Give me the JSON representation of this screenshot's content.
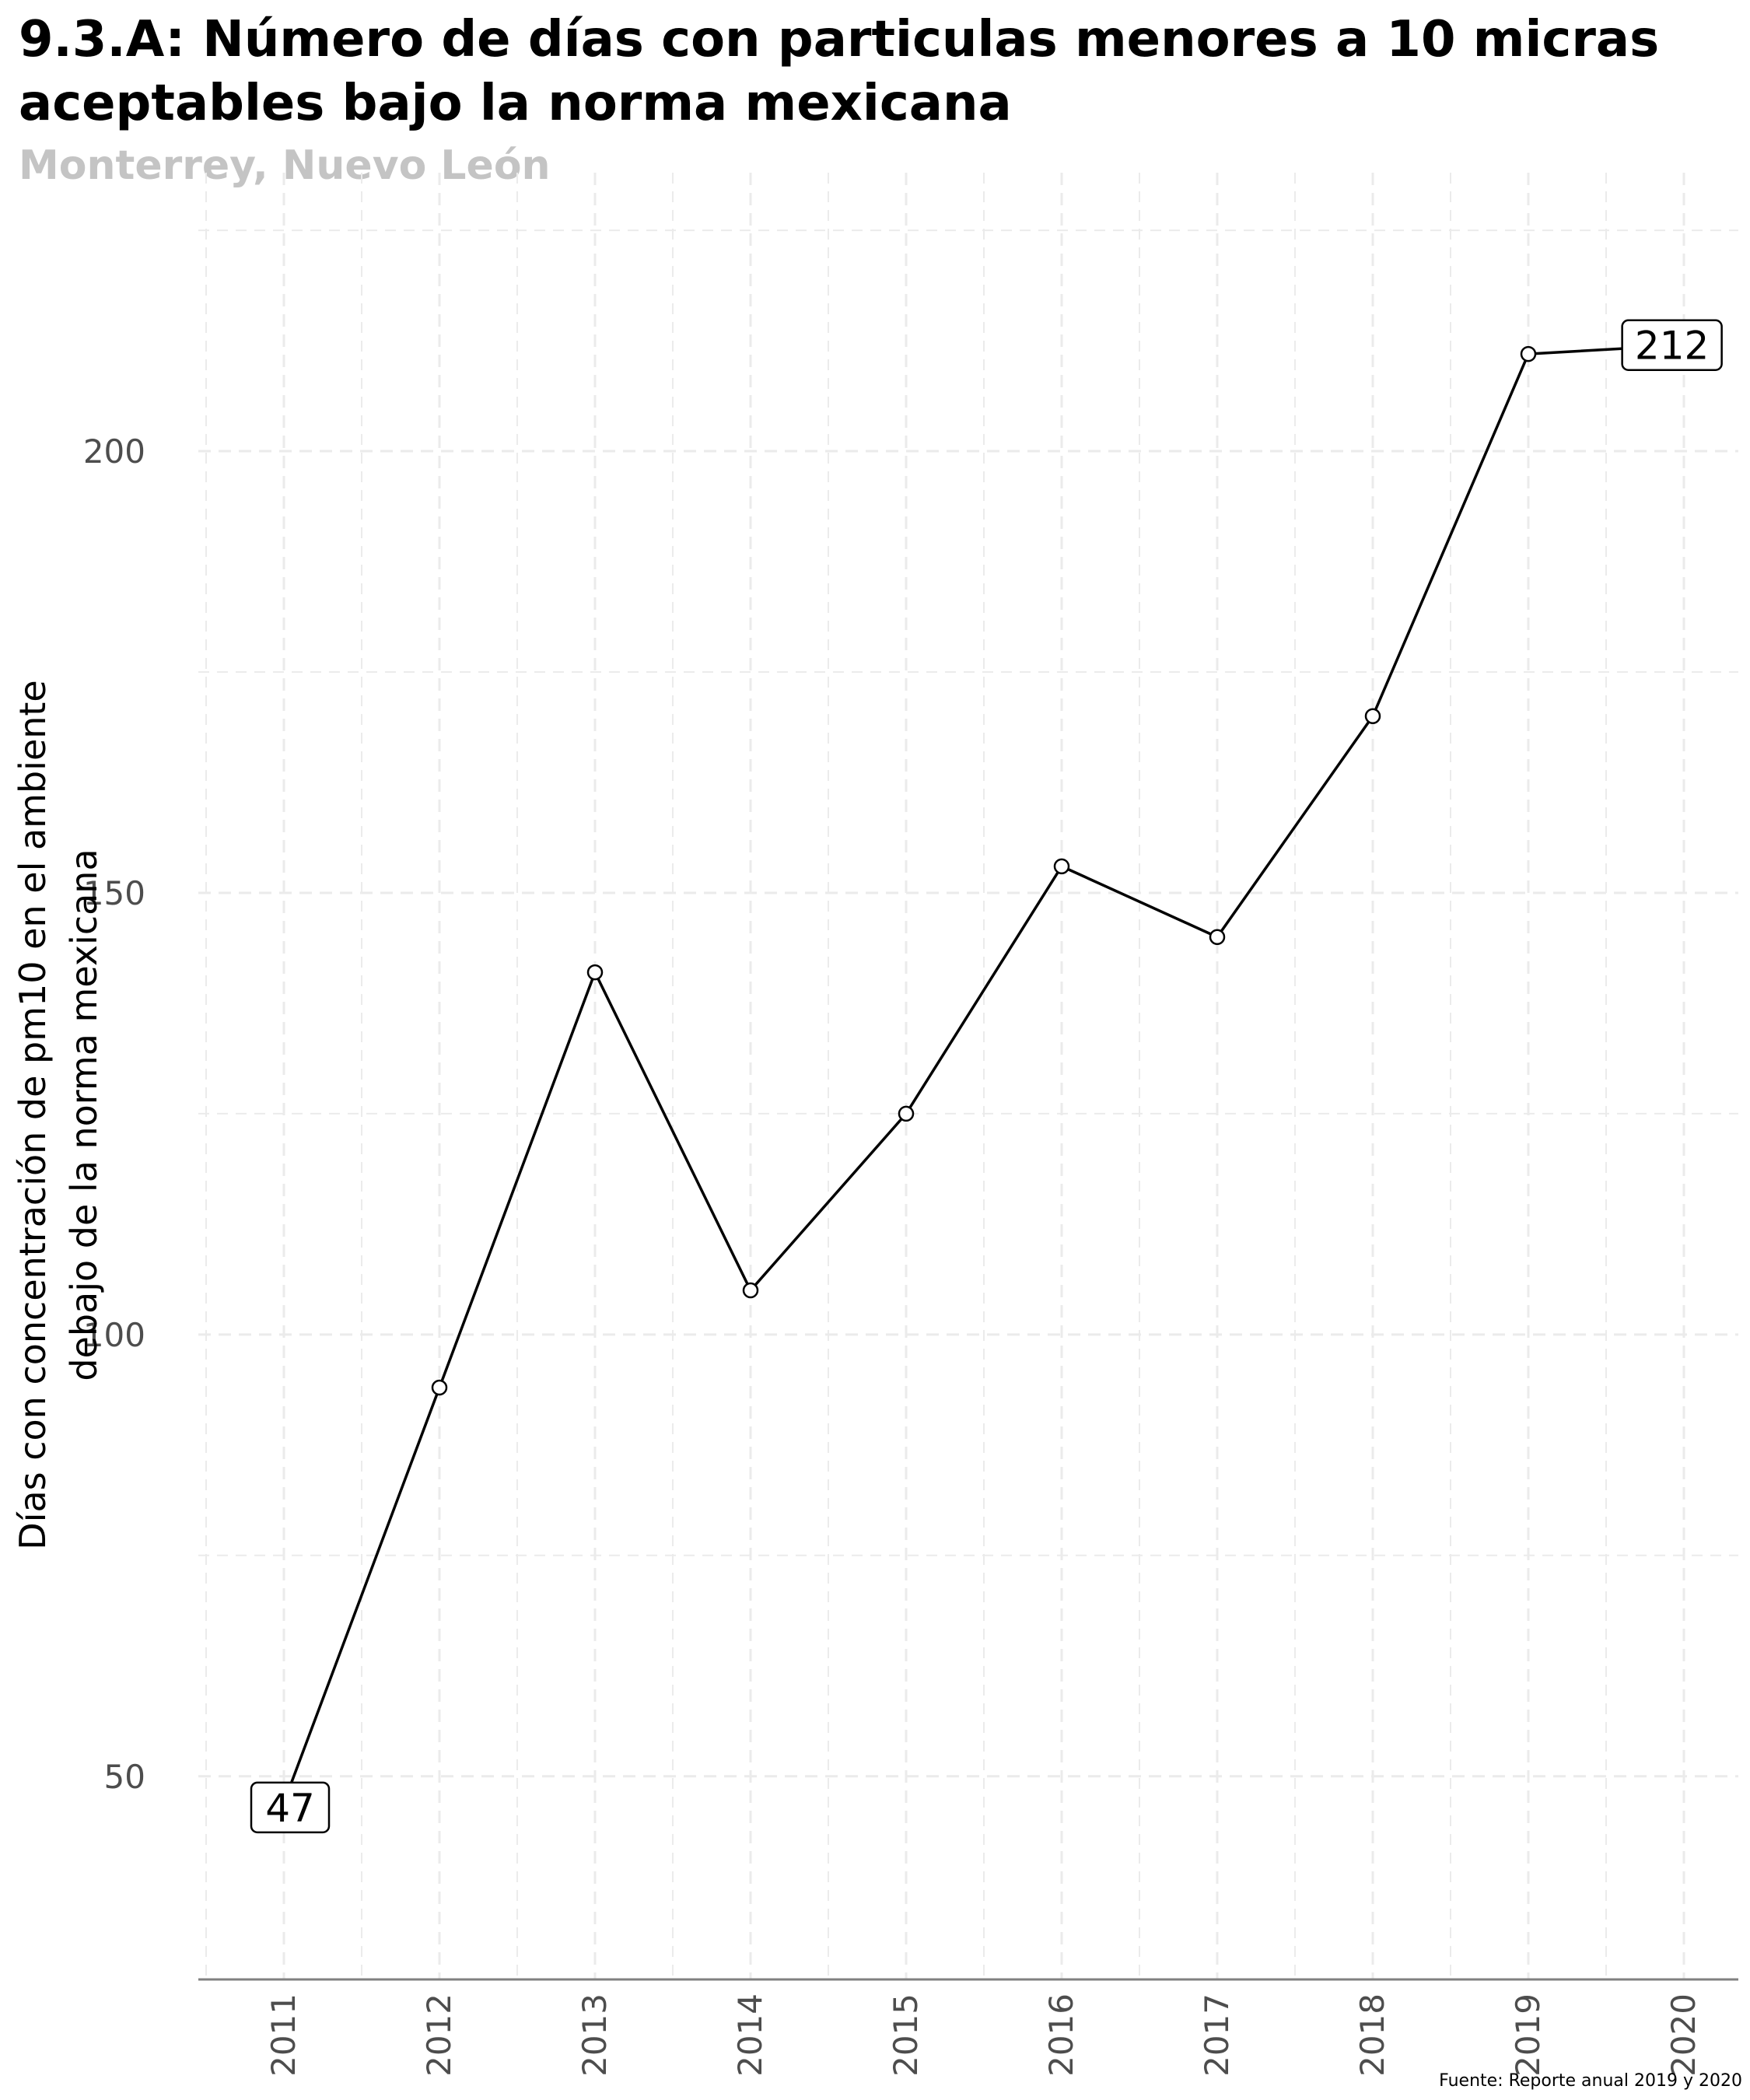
{
  "title": "9.3.A: Número de días con particulas menores a 10 micras aceptables bajo la norma mexicana",
  "subtitle": "Monterrey, Nuevo León",
  "caption": "Fuente: Reporte anual 2019 y 2020",
  "chart_data": {
    "type": "line",
    "title": "9.3.A: Número de días con particulas menores a 10 micras aceptables bajo la norma mexicana",
    "subtitle": "Monterrey, Nuevo León",
    "xlabel": "",
    "ylabel": "Días con concentración de pm10 en el ambiente debajo de la norma mexicana",
    "ylabel_lines": [
      "Días con concentración de pm10 en el ambiente",
      "debajo de la norma mexicana"
    ],
    "x": [
      "2011",
      "2012",
      "2013",
      "2014",
      "2015",
      "2016",
      "2017",
      "2018",
      "2019",
      "2020"
    ],
    "series": [
      {
        "values": [
          47,
          94,
          141,
          105,
          125,
          153,
          145,
          170,
          211,
          212
        ]
      }
    ],
    "labeled_points": [
      {
        "x": "2011",
        "label": "47"
      },
      {
        "x": "2020",
        "label": "212"
      }
    ],
    "yticks": [
      50,
      100,
      150,
      200
    ],
    "ylim": [
      27,
      228
    ],
    "grid": true,
    "grid_style": "dashed",
    "colors": {
      "line": "#000000",
      "point_fill": "#ffffff",
      "grid": "#ebebeb",
      "axis": "#808080"
    }
  }
}
